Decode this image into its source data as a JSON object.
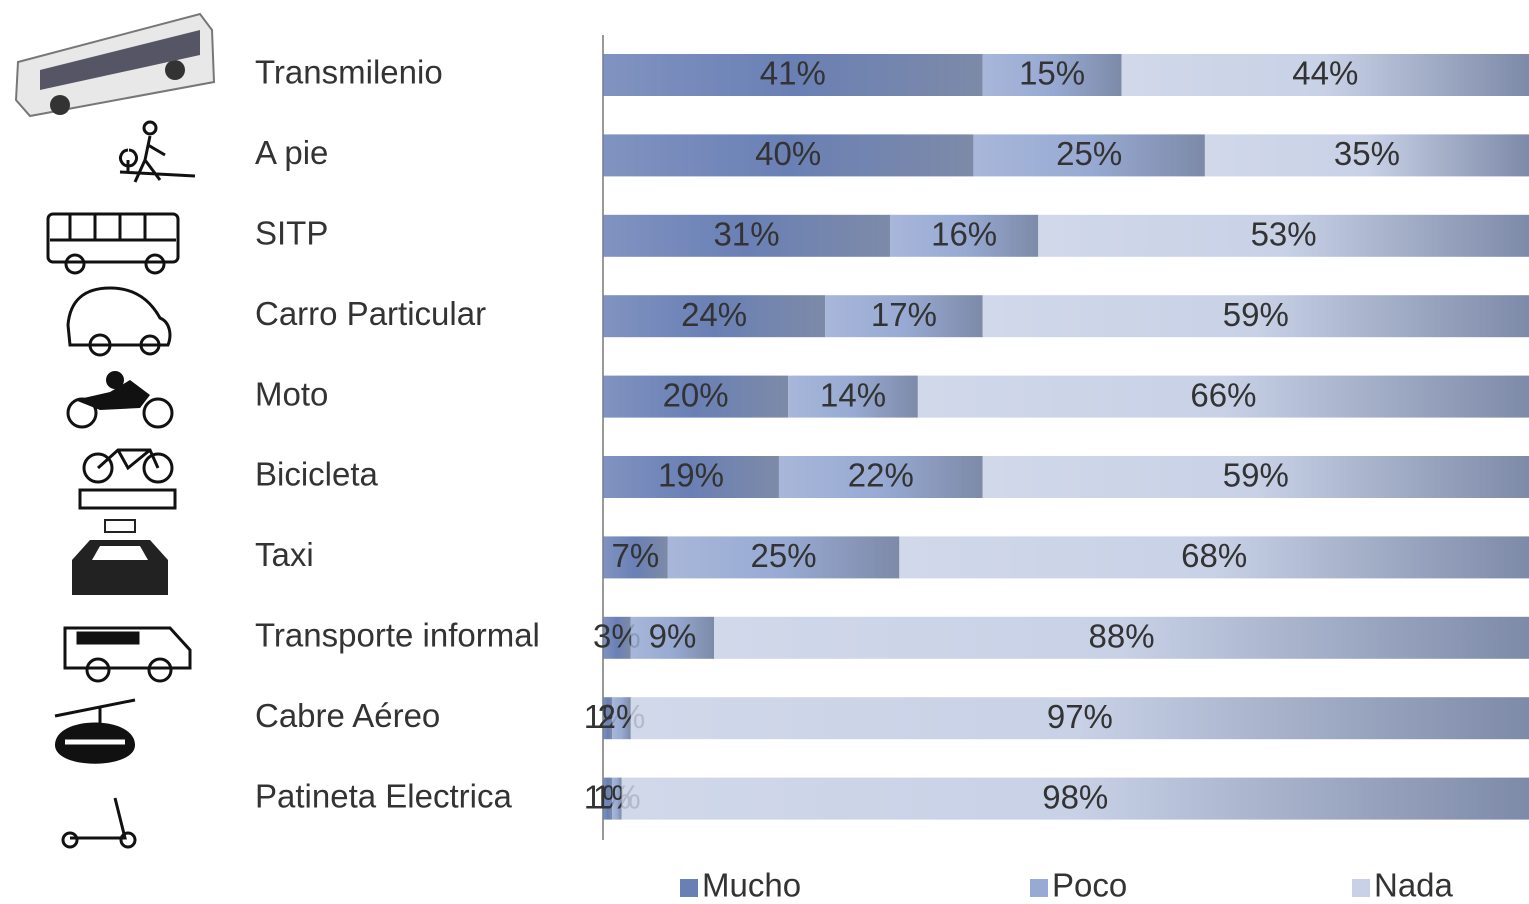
{
  "chart_data": {
    "type": "stacked-bar",
    "orientation": "horizontal",
    "categories": [
      "Transmilenio",
      "A pie",
      "SITP",
      "Carro Particular",
      "Moto",
      "Bicicleta",
      "Taxi",
      "Transporte informal",
      "Cabre Aéreo",
      "Patineta Electrica"
    ],
    "series": [
      {
        "name": "Mucho",
        "color": "#6a80b5",
        "values": [
          41,
          40,
          31,
          24,
          20,
          19,
          7,
          3,
          1,
          1
        ],
        "value_labels": [
          "41%",
          "40%",
          "31%",
          "24%",
          "20%",
          "19%",
          "7%",
          "3%",
          "1%",
          "1%"
        ]
      },
      {
        "name": "Poco",
        "color": "#98aad3",
        "values": [
          15,
          25,
          16,
          17,
          14,
          22,
          25,
          9,
          2,
          1
        ],
        "value_labels": [
          "15%",
          "25%",
          "16%",
          "17%",
          "14%",
          "22%",
          "25%",
          "9%",
          "2%",
          "1%"
        ]
      },
      {
        "name": "Nada",
        "color": "#c8d1e6",
        "values": [
          44,
          35,
          53,
          59,
          66,
          59,
          68,
          88,
          97,
          98
        ],
        "value_labels": [
          "44%",
          "35%",
          "53%",
          "59%",
          "66%",
          "59%",
          "68%",
          "88%",
          "97%",
          "98%"
        ]
      }
    ],
    "xlim": [
      0,
      100
    ],
    "legend": "bottom"
  }
}
